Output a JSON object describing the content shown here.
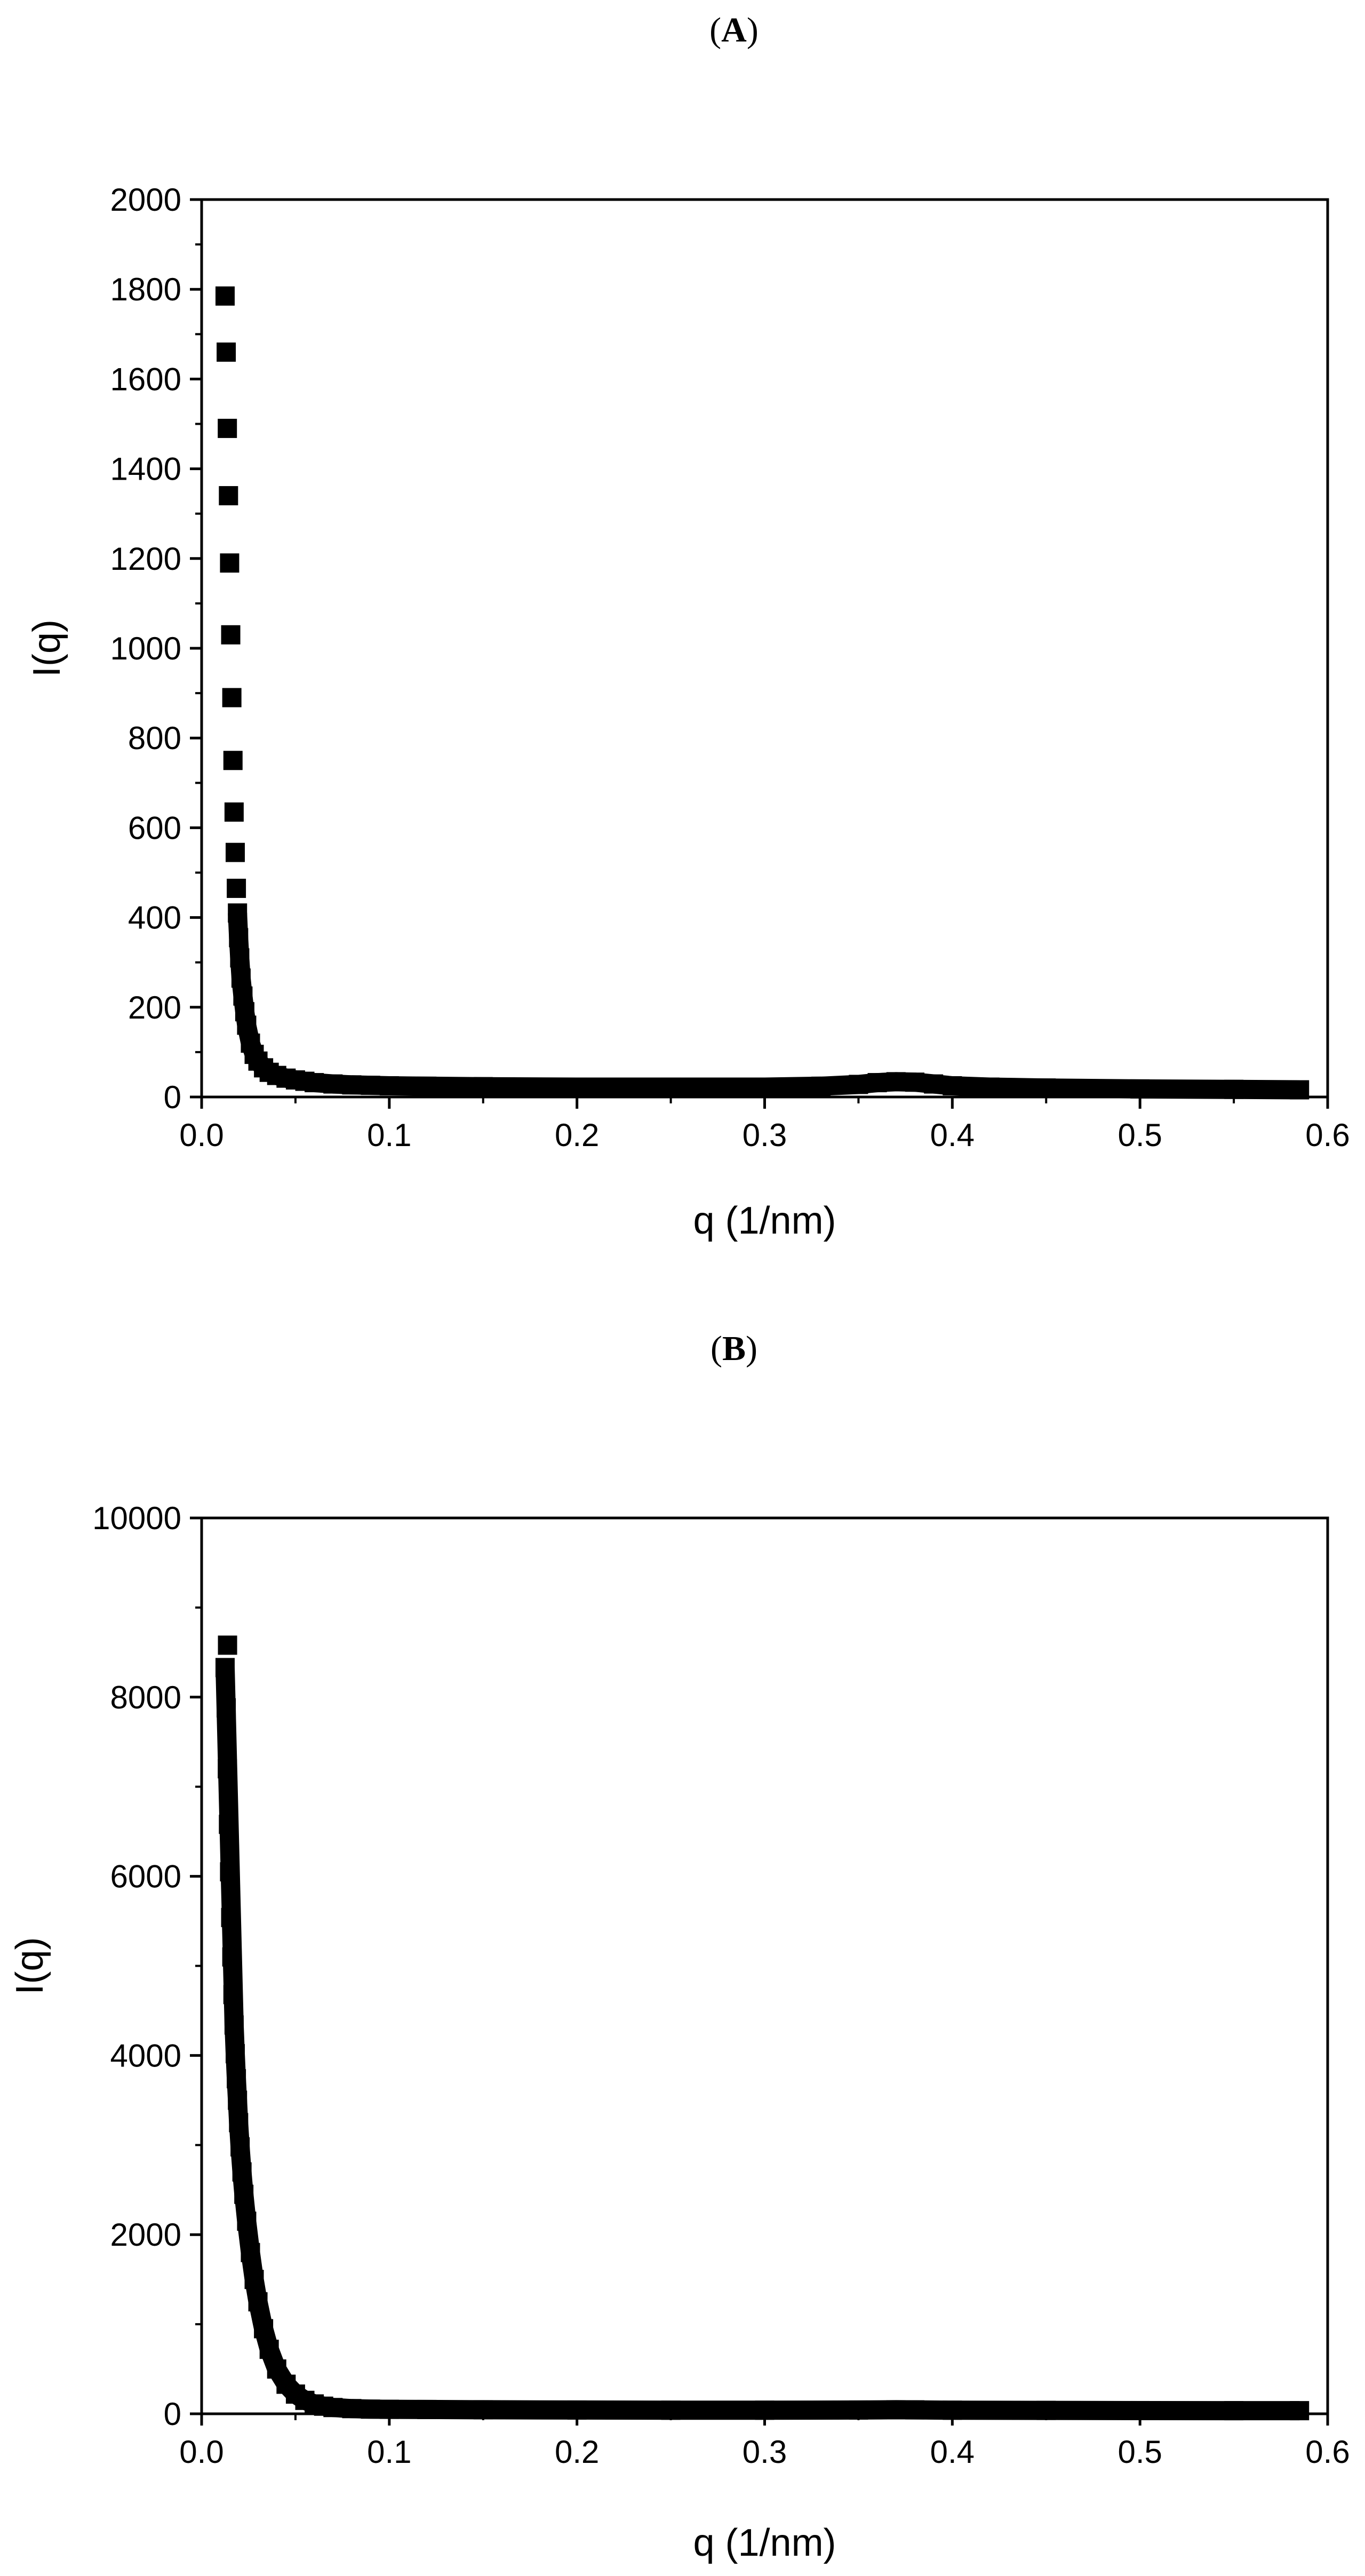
{
  "chart_data": [
    {
      "type": "scatter",
      "panel_label": "A",
      "title": "",
      "xlabel": "q (1/nm)",
      "ylabel": "I(q)",
      "xlim": [
        0.0,
        0.6
      ],
      "ylim": [
        0,
        2000
      ],
      "xticks": [
        0.0,
        0.1,
        0.2,
        0.3,
        0.4,
        0.5,
        0.6
      ],
      "xtick_labels": [
        "0.0",
        "0.1",
        "0.2",
        "0.3",
        "0.4",
        "0.5",
        "0.6"
      ],
      "yticks": [
        0,
        200,
        400,
        600,
        800,
        1000,
        1200,
        1400,
        1600,
        1800,
        2000
      ],
      "ytick_labels": [
        "0",
        "200",
        "400",
        "600",
        "800",
        "1000",
        "1200",
        "1400",
        "1600",
        "1800",
        "2000"
      ],
      "grid": false,
      "legend": false,
      "marker": "square",
      "color": "#000000",
      "series": [
        {
          "x": [
            0.0125,
            0.0131,
            0.0137,
            0.0143,
            0.0149,
            0.0155,
            0.0161,
            0.0167,
            0.0173,
            0.0179,
            0.0185,
            0.0191,
            0.0197,
            0.0203,
            0.021,
            0.022,
            0.023,
            0.024,
            0.026,
            0.028,
            0.03,
            0.033,
            0.036,
            0.04,
            0.045,
            0.05,
            0.055,
            0.06,
            0.07,
            0.08,
            0.09,
            0.1,
            0.12,
            0.15,
            0.2,
            0.25,
            0.3,
            0.33,
            0.35,
            0.36,
            0.37,
            0.38,
            0.39,
            0.4,
            0.42,
            0.45,
            0.5,
            0.55,
            0.585
          ],
          "y": [
            1785,
            1660,
            1490,
            1340,
            1190,
            1030,
            890,
            750,
            635,
            545,
            465,
            410,
            355,
            310,
            265,
            225,
            190,
            160,
            120,
            95,
            80,
            65,
            55,
            48,
            42,
            38,
            35,
            32,
            29,
            27,
            26,
            25,
            24,
            23,
            22,
            22,
            22,
            24,
            28,
            32,
            34,
            33,
            29,
            25,
            22,
            20,
            18,
            17,
            16
          ]
        }
      ]
    },
    {
      "type": "scatter",
      "panel_label": "B",
      "title": "",
      "xlabel": "q (1/nm)",
      "ylabel": "I(q)",
      "xlim": [
        0.0,
        0.6
      ],
      "ylim": [
        0,
        10000
      ],
      "xticks": [
        0.0,
        0.1,
        0.2,
        0.3,
        0.4,
        0.5,
        0.6
      ],
      "xtick_labels": [
        "0.0",
        "0.1",
        "0.2",
        "0.3",
        "0.4",
        "0.5",
        "0.6"
      ],
      "yticks": [
        0,
        2000,
        4000,
        6000,
        8000,
        10000
      ],
      "ytick_labels": [
        "0",
        "2000",
        "4000",
        "6000",
        "8000",
        "10000"
      ],
      "grid": false,
      "legend": false,
      "marker": "square",
      "color": "#000000",
      "series": [
        {
          "x": [
            0.0138,
            0.0125,
            0.0131,
            0.0137,
            0.0143,
            0.0149,
            0.0155,
            0.0161,
            0.0167,
            0.0173,
            0.0179,
            0.0185,
            0.0191,
            0.0197,
            0.0205,
            0.0215,
            0.0225,
            0.024,
            0.026,
            0.028,
            0.03,
            0.033,
            0.036,
            0.04,
            0.045,
            0.05,
            0.055,
            0.06,
            0.065,
            0.07,
            0.08,
            0.09,
            0.1,
            0.12,
            0.15,
            0.2,
            0.25,
            0.3,
            0.35,
            0.37,
            0.38,
            0.4,
            0.45,
            0.5,
            0.55,
            0.585
          ],
          "y": [
            8580,
            8330,
            7880,
            7200,
            6580,
            6050,
            5540,
            5100,
            4680,
            4340,
            4020,
            3740,
            3500,
            3250,
            2980,
            2700,
            2450,
            2150,
            1800,
            1500,
            1250,
            950,
            720,
            500,
            330,
            220,
            150,
            110,
            85,
            70,
            58,
            52,
            50,
            48,
            45,
            42,
            40,
            40,
            42,
            45,
            44,
            40,
            38,
            36,
            35,
            35
          ]
        }
      ]
    }
  ]
}
